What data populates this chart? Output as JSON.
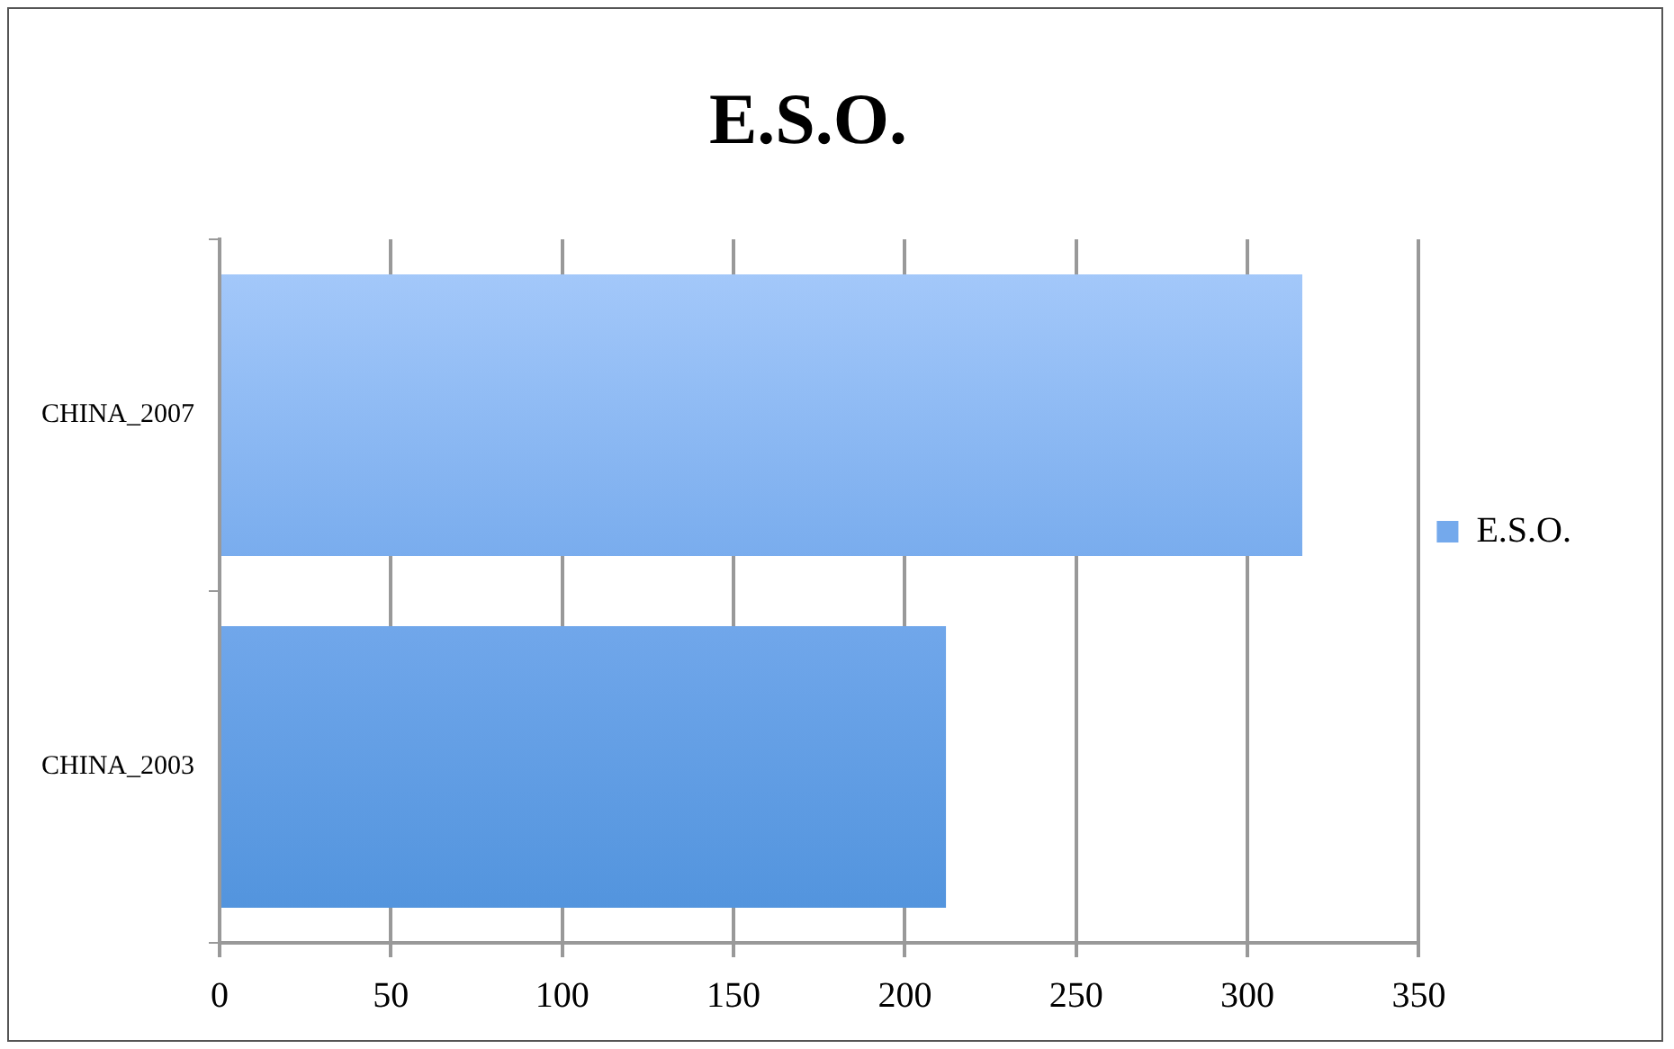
{
  "chart_data": {
    "type": "bar",
    "orientation": "horizontal",
    "title": "E.S.O.",
    "categories": [
      "CHINA_2007",
      "CHINA_2003"
    ],
    "series": [
      {
        "name": "E.S.O.",
        "color": "#74a9ec",
        "values": [
          316,
          212
        ]
      }
    ],
    "xlim": [
      0,
      350
    ],
    "xticks": [
      0,
      50,
      100,
      150,
      200,
      250,
      300,
      350
    ],
    "grid": "x",
    "legend": "right"
  }
}
